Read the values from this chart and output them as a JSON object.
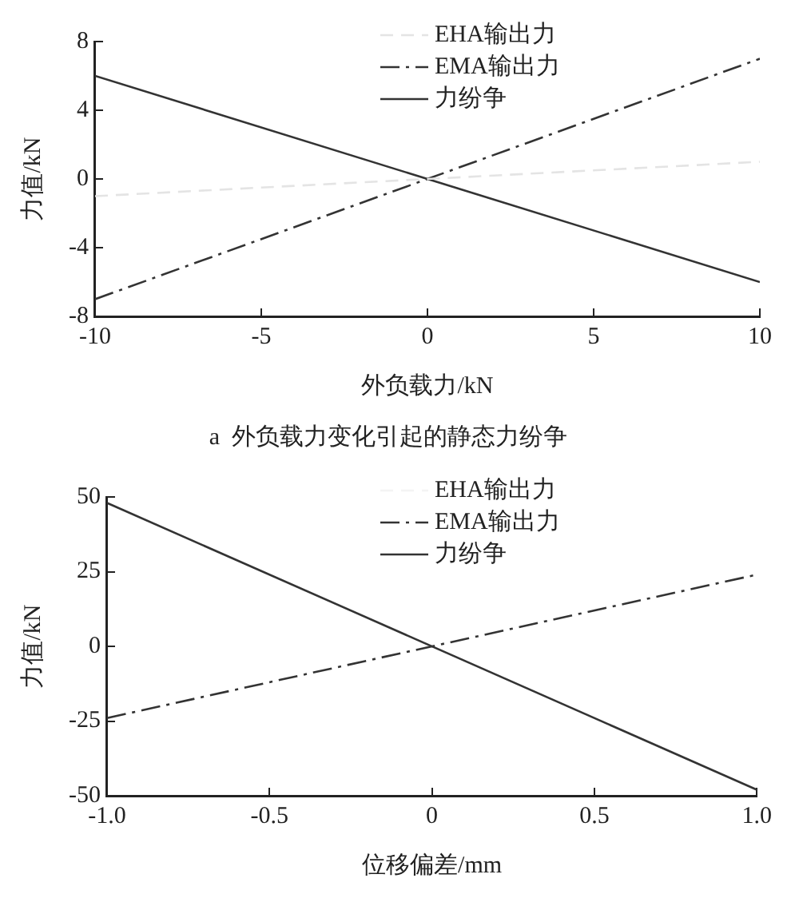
{
  "chart_data": [
    {
      "type": "line",
      "title": "a  外负载力变化引起的静态力纷争",
      "xlabel": "外负载力/kN",
      "ylabel": "力值/kN",
      "x": [
        -10,
        10
      ],
      "xlim": [
        -10,
        10
      ],
      "xticks": [
        -10,
        -5,
        0,
        5,
        10
      ],
      "ylim": [
        -8,
        8
      ],
      "yticks": [
        -8,
        -4,
        0,
        4,
        8
      ],
      "grid": false,
      "legend": "top right",
      "marker": "none",
      "series": [
        {
          "name": "EHA输出力",
          "color": "#e4e4e4",
          "values": [
            -1,
            1
          ],
          "line_style": "dashed"
        },
        {
          "name": "EMA输出力",
          "color": "#333333",
          "values": [
            -7,
            7
          ],
          "line_style": "dashdot"
        },
        {
          "name": "力纷争",
          "color": "#333333",
          "values": [
            6,
            -6
          ],
          "line_style": "solid"
        }
      ]
    },
    {
      "type": "line",
      "xlabel": "位移偏差/mm",
      "ylabel": "力值/kN",
      "x": [
        -1,
        1
      ],
      "xlim": [
        -1,
        1
      ],
      "xticks": [
        {
          "value": -1,
          "label": "-1.0"
        },
        -0.5,
        0,
        0.5,
        {
          "value": 1,
          "label": "1.0"
        }
      ],
      "ylim": [
        -50,
        50
      ],
      "yticks": [
        -50,
        -25,
        0,
        25,
        50
      ],
      "grid": false,
      "legend": "top right",
      "marker": "none",
      "series": [
        {
          "name": "EHA输出力",
          "color": "#f4f4f4",
          "values": [
            null,
            null
          ],
          "line_style": "dashed"
        },
        {
          "name": "EMA输出力",
          "color": "#333333",
          "values": [
            -24,
            24
          ],
          "line_style": "dashdot"
        },
        {
          "name": "力纷争",
          "color": "#333333",
          "values": [
            48,
            -48
          ],
          "line_style": "solid"
        }
      ]
    }
  ]
}
